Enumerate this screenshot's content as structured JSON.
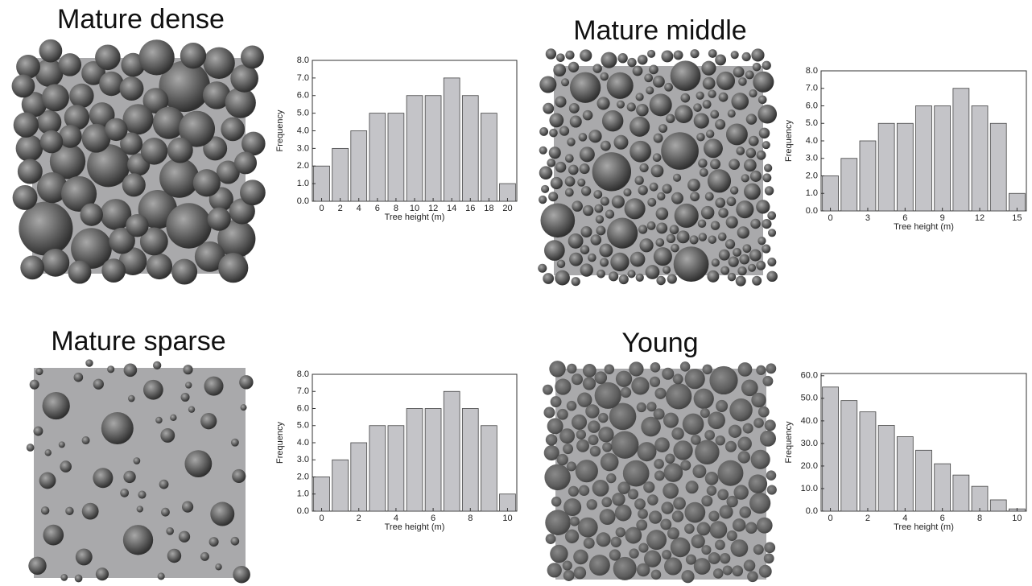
{
  "chart_data": [
    {
      "type": "bar",
      "title": "Mature dense",
      "x_label": "Tree height (m)",
      "y_label": "Frequency",
      "color": "#c4c4c8",
      "x": [
        0,
        2,
        4,
        6,
        8,
        10,
        12,
        14,
        16,
        18,
        20
      ],
      "values": [
        2,
        3,
        4,
        5,
        5,
        6,
        6,
        7,
        6,
        5,
        1
      ],
      "xlim": [
        -1,
        21
      ],
      "xticks": [
        0,
        2,
        4,
        6,
        8,
        10,
        12,
        14,
        16,
        18,
        20
      ],
      "ylim": [
        0,
        8
      ],
      "yticks": [
        {
          "value": 0,
          "label": "0.0"
        },
        {
          "value": 1,
          "label": "1.0"
        },
        {
          "value": 2,
          "label": "2.0"
        },
        {
          "value": 3,
          "label": "3.0"
        },
        {
          "value": 4,
          "label": "4.0"
        },
        {
          "value": 5,
          "label": "5.0"
        },
        {
          "value": 6,
          "label": "6.0"
        },
        {
          "value": 7,
          "label": "7.0"
        },
        {
          "value": 8,
          "label": "8.0"
        }
      ]
    },
    {
      "type": "bar",
      "title": "Mature middle",
      "x_label": "Tree height (m)",
      "y_label": "Frequency",
      "color": "#c4c4c8",
      "x": [
        0,
        1.5,
        3,
        4.5,
        6,
        7.5,
        9,
        10.5,
        12,
        13.5,
        15
      ],
      "values": [
        2,
        3,
        4,
        5,
        5,
        6,
        6,
        7,
        6,
        5,
        1
      ],
      "xlim": [
        -0.75,
        15.75
      ],
      "xticks": [
        0,
        3,
        6,
        9,
        12,
        15
      ],
      "ylim": [
        0,
        8
      ],
      "yticks": [
        {
          "value": 0,
          "label": "0.0"
        },
        {
          "value": 1,
          "label": "1.0"
        },
        {
          "value": 2,
          "label": "2.0"
        },
        {
          "value": 3,
          "label": "3.0"
        },
        {
          "value": 4,
          "label": "4.0"
        },
        {
          "value": 5,
          "label": "5.0"
        },
        {
          "value": 6,
          "label": "6.0"
        },
        {
          "value": 7,
          "label": "7.0"
        },
        {
          "value": 8,
          "label": "8.0"
        }
      ]
    },
    {
      "type": "bar",
      "title": "Mature sparse",
      "x_label": "Tree height (m)",
      "y_label": "Frequency",
      "color": "#c4c4c8",
      "x": [
        0,
        1,
        2,
        3,
        4,
        5,
        6,
        7,
        8,
        9,
        10
      ],
      "values": [
        2,
        3,
        4,
        5,
        5,
        6,
        6,
        7,
        6,
        5,
        1
      ],
      "xlim": [
        -0.5,
        10.5
      ],
      "xticks": [
        0,
        2,
        4,
        6,
        8,
        10
      ],
      "ylim": [
        0,
        8
      ],
      "yticks": [
        {
          "value": 0,
          "label": "0.0"
        },
        {
          "value": 1,
          "label": "1.0"
        },
        {
          "value": 2,
          "label": "2.0"
        },
        {
          "value": 3,
          "label": "3.0"
        },
        {
          "value": 4,
          "label": "4.0"
        },
        {
          "value": 5,
          "label": "5.0"
        },
        {
          "value": 6,
          "label": "6.0"
        },
        {
          "value": 7,
          "label": "7.0"
        },
        {
          "value": 8,
          "label": "8.0"
        }
      ]
    },
    {
      "type": "bar",
      "title": "Young",
      "x_label": "Tree height (m)",
      "y_label": "Frequency",
      "color": "#c4c4c8",
      "x": [
        0,
        1,
        2,
        3,
        4,
        5,
        6,
        7,
        8,
        9,
        10
      ],
      "values": [
        55,
        49,
        44,
        38,
        33,
        27,
        21,
        16,
        11,
        5,
        1
      ],
      "xlim": [
        -0.5,
        10.5
      ],
      "xticks": [
        0,
        2,
        4,
        6,
        8,
        10
      ],
      "ylim": [
        0,
        61
      ],
      "yticks": [
        {
          "value": 0,
          "label": "0.0"
        },
        {
          "value": 10,
          "label": "10.0"
        },
        {
          "value": 20,
          "label": "20.0"
        },
        {
          "value": 30,
          "label": "30.0"
        },
        {
          "value": 40,
          "label": "40.0"
        },
        {
          "value": 50,
          "label": "50.0"
        },
        {
          "value": 60,
          "label": "60.0"
        }
      ]
    }
  ]
}
